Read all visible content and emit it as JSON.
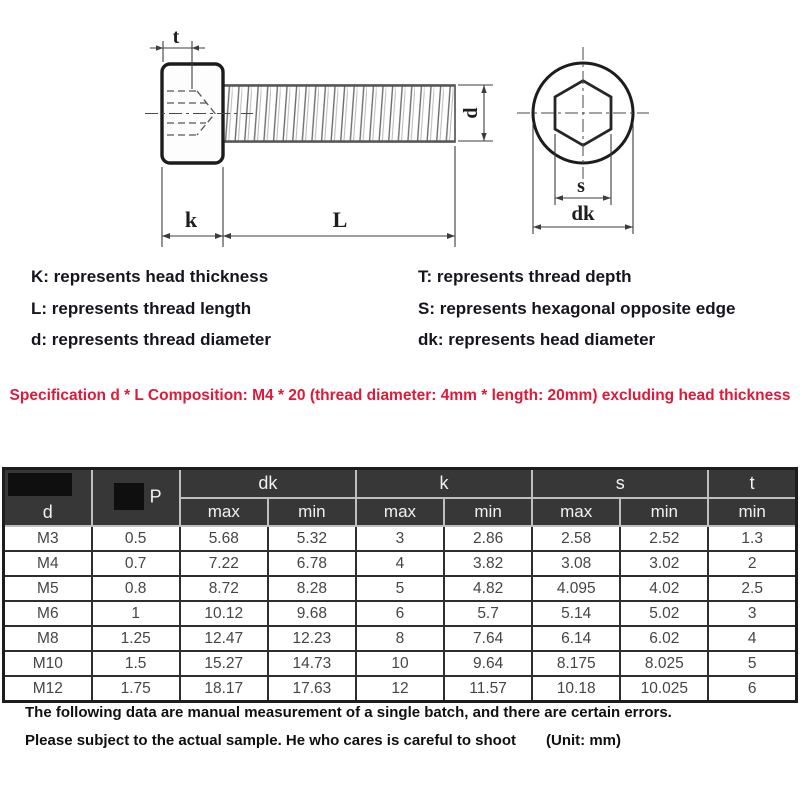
{
  "diagram": {
    "labels": {
      "t": "t",
      "k": "k",
      "l": "L",
      "d": "d",
      "s": "s",
      "dk": "dk"
    }
  },
  "legend": {
    "left": [
      "K: represents head thickness",
      "L: represents thread length",
      "d: represents thread diameter"
    ],
    "right": [
      "T: represents thread depth",
      "S: represents hexagonal opposite edge",
      "dk: represents head diameter"
    ]
  },
  "spec_note": "Specification d * L Composition: M4 * 20 (thread diameter: 4mm * length: 20mm) excluding head thickness",
  "table": {
    "top_headers": {
      "d": "d",
      "p": "P",
      "dk": "dk",
      "k": "k",
      "s": "s",
      "t": "t"
    },
    "sub_headers": [
      "max",
      "min",
      "max",
      "min",
      "max",
      "min",
      "min"
    ],
    "rows": [
      [
        "M3",
        "0.5",
        "5.68",
        "5.32",
        "3",
        "2.86",
        "2.58",
        "2.52",
        "1.3"
      ],
      [
        "M4",
        "0.7",
        "7.22",
        "6.78",
        "4",
        "3.82",
        "3.08",
        "3.02",
        "2"
      ],
      [
        "M5",
        "0.8",
        "8.72",
        "8.28",
        "5",
        "4.82",
        "4.095",
        "4.02",
        "2.5"
      ],
      [
        "M6",
        "1",
        "10.12",
        "9.68",
        "6",
        "5.7",
        "5.14",
        "5.02",
        "3"
      ],
      [
        "M8",
        "1.25",
        "12.47",
        "12.23",
        "8",
        "7.64",
        "6.14",
        "6.02",
        "4"
      ],
      [
        "M10",
        "1.5",
        "15.27",
        "14.73",
        "10",
        "9.64",
        "8.175",
        "8.025",
        "5"
      ],
      [
        "M12",
        "1.75",
        "18.17",
        "17.63",
        "12",
        "11.57",
        "10.18",
        "10.025",
        "6"
      ]
    ]
  },
  "footer": {
    "line1": "The following data are manual measurement of a single batch, and there are certain errors.",
    "line2": "Please subject to the actual sample. He who cares is careful to shoot",
    "unit": "(Unit: mm)"
  },
  "colors": {
    "accent_red": "#e0193a",
    "table_header_bg": "#373737",
    "patch_black": "#0f0f0f"
  }
}
